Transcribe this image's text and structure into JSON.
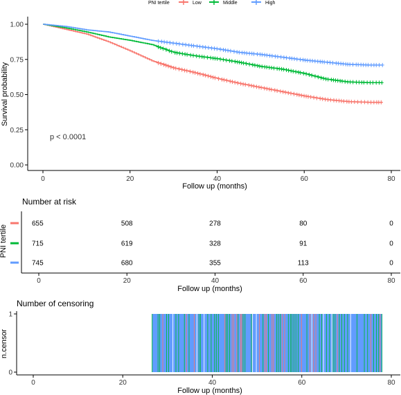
{
  "chart_data": [
    {
      "type": "line",
      "legend": {
        "title": "PNI tertile",
        "position": "top"
      },
      "series": [
        {
          "name": "Low",
          "color": "#F8766D",
          "x": [
            0,
            5,
            10,
            15,
            20,
            25,
            30,
            35,
            40,
            45,
            50,
            55,
            60,
            65,
            70,
            75,
            78
          ],
          "y": [
            1.0,
            0.965,
            0.93,
            0.875,
            0.81,
            0.74,
            0.69,
            0.655,
            0.615,
            0.58,
            0.55,
            0.52,
            0.49,
            0.465,
            0.45,
            0.445,
            0.445
          ]
        },
        {
          "name": "Middle",
          "color": "#00BA38",
          "x": [
            0,
            5,
            10,
            15,
            20,
            25,
            30,
            35,
            40,
            45,
            50,
            55,
            60,
            65,
            70,
            75,
            78
          ],
          "y": [
            1.0,
            0.975,
            0.945,
            0.91,
            0.885,
            0.855,
            0.8,
            0.775,
            0.755,
            0.73,
            0.7,
            0.68,
            0.65,
            0.61,
            0.59,
            0.585,
            0.585
          ]
        },
        {
          "name": "High",
          "color": "#619CFF",
          "x": [
            0,
            5,
            10,
            15,
            20,
            25,
            30,
            35,
            40,
            45,
            50,
            55,
            60,
            65,
            70,
            75,
            78
          ],
          "y": [
            1.0,
            0.985,
            0.96,
            0.945,
            0.915,
            0.885,
            0.865,
            0.845,
            0.825,
            0.8,
            0.785,
            0.765,
            0.745,
            0.73,
            0.715,
            0.71,
            0.71
          ]
        }
      ],
      "annotation": "p < 0.0001",
      "xlabel": "Follow up (months)",
      "ylabel": "Survival probability",
      "xlim": [
        0,
        80
      ],
      "ylim": [
        0,
        1
      ],
      "xticks": [
        "0",
        "20",
        "40",
        "60",
        "80"
      ],
      "yticks": [
        "0.00",
        "0.25",
        "0.50",
        "0.75",
        "1.00"
      ],
      "grid": false
    },
    {
      "type": "table",
      "title": "Number at risk",
      "ylabel": "PNI tertile",
      "xlabel": "Follow up (months)",
      "x": [
        0,
        20,
        40,
        60,
        80
      ],
      "xticks": [
        "0",
        "20",
        "40",
        "60",
        "80"
      ],
      "rows": [
        {
          "group": "Low",
          "color": "#F8766D",
          "values": [
            "655",
            "508",
            "278",
            "80",
            "0"
          ]
        },
        {
          "group": "Middle",
          "color": "#00BA38",
          "values": [
            "715",
            "619",
            "328",
            "91",
            "0"
          ]
        },
        {
          "group": "High",
          "color": "#619CFF",
          "values": [
            "745",
            "680",
            "355",
            "113",
            "0"
          ]
        }
      ]
    },
    {
      "type": "bar",
      "title": "Number of censoring",
      "ylabel": "n.censor",
      "xlabel": "Follow up (months)",
      "xlim": [
        0,
        80
      ],
      "xticks": [
        "0",
        "20",
        "40",
        "60",
        "80"
      ],
      "yticks": [
        "0",
        "1"
      ],
      "censor_range": [
        26.5,
        78
      ],
      "series_colors": [
        "#619CFF",
        "#00BA38",
        "#F8766D"
      ]
    }
  ]
}
